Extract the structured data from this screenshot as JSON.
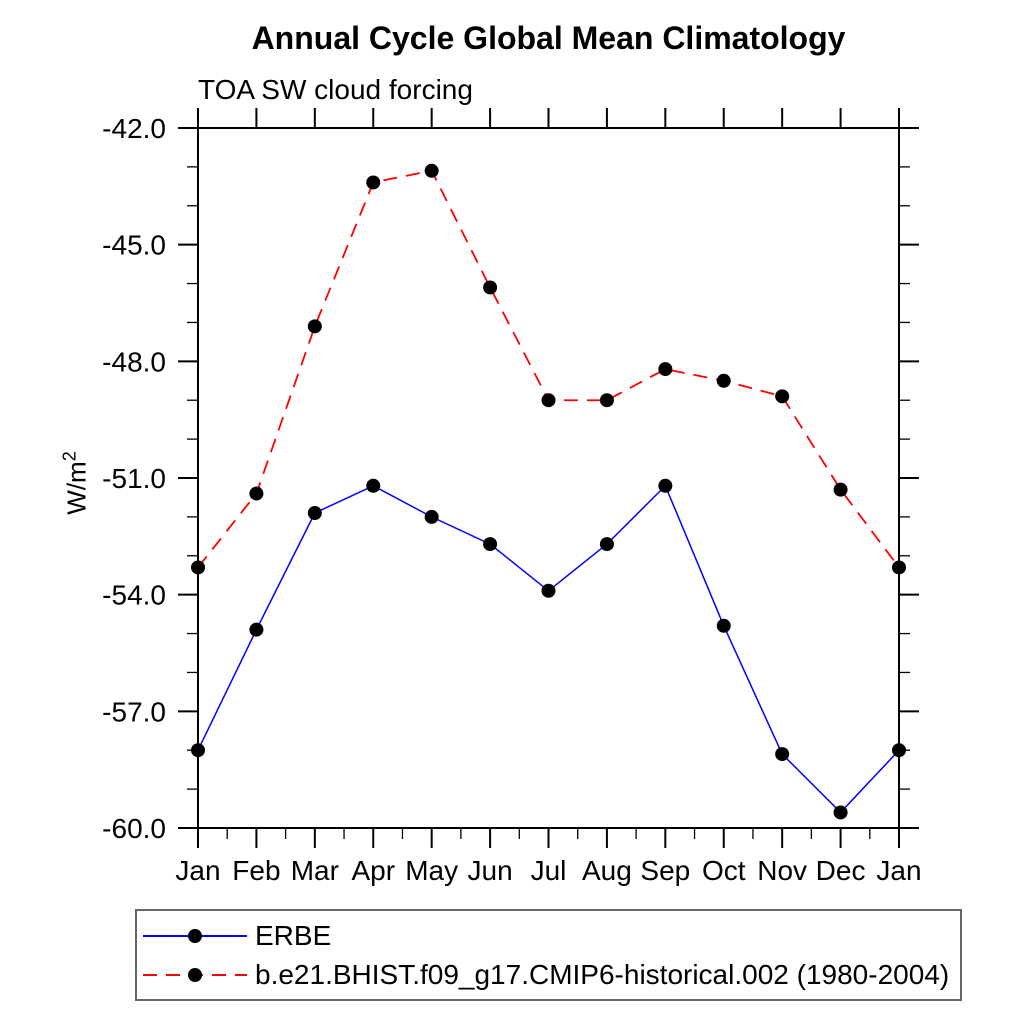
{
  "chart_data": {
    "type": "line",
    "title": "Annual Cycle Global Mean Climatology",
    "subtitle": "TOA SW cloud forcing",
    "ylabel_base": "W/m",
    "ylabel_exponent": "2",
    "categories": [
      "Jan",
      "Feb",
      "Mar",
      "Apr",
      "May",
      "Jun",
      "Jul",
      "Aug",
      "Sep",
      "Oct",
      "Nov",
      "Dec",
      "Jan"
    ],
    "ylim": [
      -60.0,
      -42.0
    ],
    "y_major_step": 3.0,
    "y_minor_step": 1.0,
    "y_tick_labels": [
      "-42.0",
      "-45.0",
      "-48.0",
      "-51.0",
      "-54.0",
      "-57.0",
      "-60.0"
    ],
    "grid": false,
    "legend_position": "bottom-left-box",
    "series": [
      {
        "name": "ERBE",
        "color": "#0000ff",
        "line_style": "solid",
        "marker": "filled-circle",
        "marker_color": "#000000",
        "values": [
          -58.0,
          -54.9,
          -51.9,
          -51.2,
          -52.0,
          -52.7,
          -53.9,
          -52.7,
          -51.2,
          -54.8,
          -58.1,
          -59.6,
          -58.0
        ]
      },
      {
        "name": "b.e21.BHIST.f09_g17.CMIP6-historical.002 (1980-2004)",
        "color": "#ff0000",
        "line_style": "dashed",
        "marker": "filled-circle",
        "marker_color": "#000000",
        "values": [
          -53.3,
          -51.4,
          -47.1,
          -43.4,
          -43.1,
          -46.1,
          -49.0,
          -49.0,
          -48.2,
          -48.5,
          -48.9,
          -51.3,
          -53.3
        ]
      }
    ]
  }
}
